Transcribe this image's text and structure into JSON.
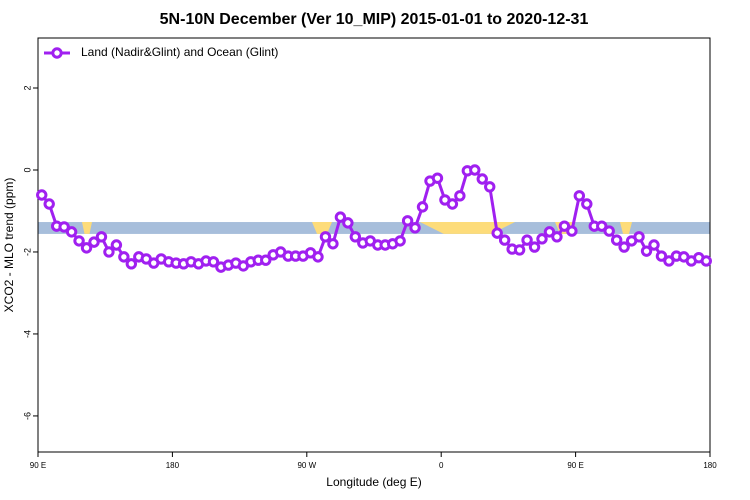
{
  "chart_data": {
    "type": "line",
    "title": "5N-10N December (Ver 10_MIP)   2015-01-01 to 2020-12-31",
    "x_label": "Longitude (deg E)",
    "y_label": "XCO2 - MLO trend (ppm)",
    "xlim": [
      90,
      540
    ],
    "xticks": [
      {
        "value": 90,
        "label": "90 E"
      },
      {
        "value": 180,
        "label": "180"
      },
      {
        "value": 270,
        "label": "90 W"
      },
      {
        "value": 360,
        "label": "0"
      },
      {
        "value": 450,
        "label": "90 E"
      },
      {
        "value": 540,
        "label": "180"
      }
    ],
    "ylim": [
      -6.88,
      3.22
    ],
    "yticks": [
      -6,
      -4,
      -2,
      0,
      2
    ],
    "legend_position": "top-left",
    "band": [
      -1.56,
      -1.27
    ],
    "band_color": "#a7bedb",
    "x": [
      92.5,
      97.5,
      102.5,
      107.5,
      112.5,
      117.5,
      122.5,
      127.5,
      132.5,
      137.5,
      142.5,
      147.5,
      152.5,
      157.5,
      162.5,
      167.5,
      172.5,
      177.5,
      182.5,
      187.5,
      192.5,
      197.5,
      202.5,
      207.5,
      212.5,
      217.5,
      222.5,
      227.5,
      232.5,
      237.5,
      242.5,
      247.5,
      252.5,
      257.5,
      262.5,
      267.5,
      272.5,
      277.5,
      282.5,
      287.5,
      292.5,
      297.5,
      302.5,
      307.5,
      312.5,
      317.5,
      322.5,
      327.5,
      332.5,
      337.5,
      342.5,
      347.5,
      352.5,
      357.5,
      362.5,
      367.5,
      372.5,
      377.5,
      382.5,
      387.5,
      392.5,
      397.5,
      402.5,
      407.5,
      412.5,
      417.5,
      422.5,
      427.5,
      432.5,
      437.5,
      442.5,
      447.5,
      452.5,
      457.5,
      462.5,
      467.5,
      472.5,
      477.5,
      482.5,
      487.5,
      492.5,
      497.5,
      502.5,
      507.5,
      512.5,
      517.5,
      522.5,
      527.5,
      532.5,
      537.5
    ],
    "series": [
      {
        "name": "Land (Nadir&Glint) and Ocean (Glint)",
        "color": "#a020f0",
        "values": [
          -0.61,
          -0.83,
          -1.37,
          -1.39,
          -1.51,
          -1.73,
          -1.9,
          -1.76,
          -1.63,
          -2.0,
          -1.83,
          -2.12,
          -2.29,
          -2.12,
          -2.17,
          -2.27,
          -2.17,
          -2.24,
          -2.27,
          -2.29,
          -2.24,
          -2.29,
          -2.22,
          -2.24,
          -2.37,
          -2.32,
          -2.27,
          -2.34,
          -2.24,
          -2.2,
          -2.2,
          -2.07,
          -2.0,
          -2.1,
          -2.1,
          -2.1,
          -2.02,
          -2.12,
          -1.63,
          -1.8,
          -1.15,
          -1.29,
          -1.63,
          -1.78,
          -1.73,
          -1.83,
          -1.83,
          -1.8,
          -1.73,
          -1.24,
          -1.41,
          -0.9,
          -0.27,
          -0.2,
          -0.73,
          -0.83,
          -0.63,
          -0.02,
          0.0,
          -0.22,
          -0.41,
          -1.54,
          -1.71,
          -1.93,
          -1.95,
          -1.71,
          -1.88,
          -1.68,
          -1.51,
          -1.63,
          -1.37,
          -1.49,
          -0.63,
          -0.83,
          -1.37,
          -1.37,
          -1.49,
          -1.71,
          -1.88,
          -1.73,
          -1.63,
          -1.98,
          -1.83,
          -2.1,
          -2.22,
          -2.1,
          -2.12,
          -2.22,
          -2.14,
          -2.22
        ]
      }
    ]
  }
}
